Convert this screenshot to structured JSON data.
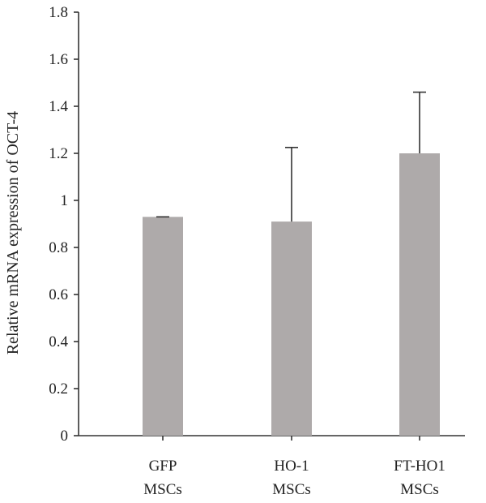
{
  "chart_data": {
    "type": "bar",
    "title": "",
    "xlabel": "",
    "ylabel": "Relative mRNA expression of OCT-4",
    "categories": [
      [
        "GFP",
        "MSCs"
      ],
      [
        "HO-1",
        "MSCs"
      ],
      [
        "FT-HO1",
        "MSCs"
      ]
    ],
    "values": [
      0.93,
      0.91,
      1.2
    ],
    "errors": [
      0.0,
      0.315,
      0.26
    ],
    "ylim": [
      0,
      1.8
    ],
    "yticks": [
      "0",
      "0.2",
      "0.4",
      "0.6",
      "0.8",
      "1",
      "1.2",
      "1.4",
      "1.6",
      "1.8"
    ],
    "bar_color": "#aeaaaa",
    "grid": false,
    "legend": "none"
  }
}
